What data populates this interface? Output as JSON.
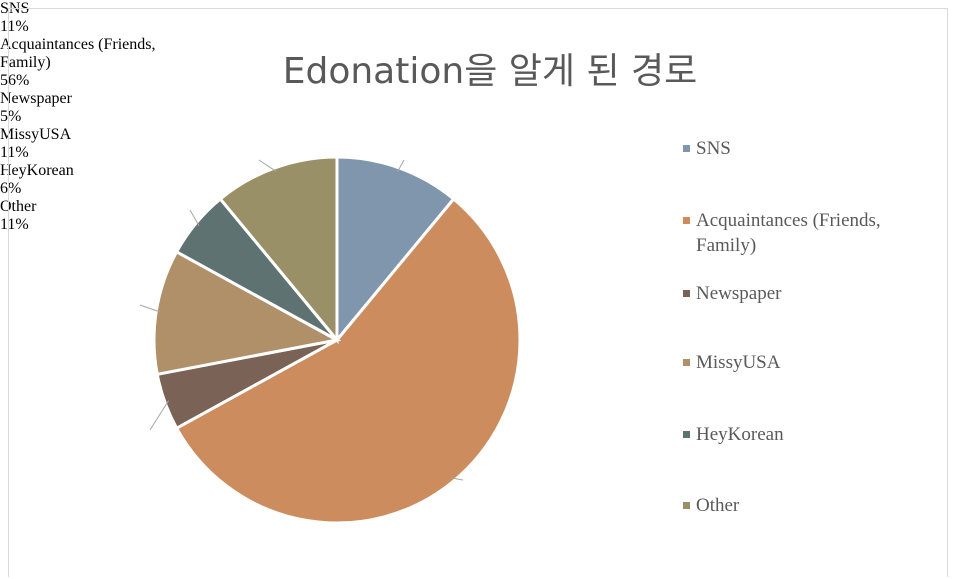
{
  "chart_data": {
    "type": "pie",
    "title": "Edonation을 알게 된 경로",
    "categories": [
      "SNS",
      "Acquaintances (Friends, Family)",
      "Newspaper",
      "MissyUSA",
      "HeyKorean",
      "Other"
    ],
    "values": [
      11,
      56,
      5,
      11,
      6,
      11
    ],
    "value_labels": [
      "11%",
      "56%",
      "5%",
      "11%",
      "6%",
      "11%"
    ],
    "colors": [
      "#7f96ad",
      "#cc8c5e",
      "#7a6356",
      "#b09068",
      "#5f7272",
      "#9a9068"
    ],
    "legend": "right"
  }
}
